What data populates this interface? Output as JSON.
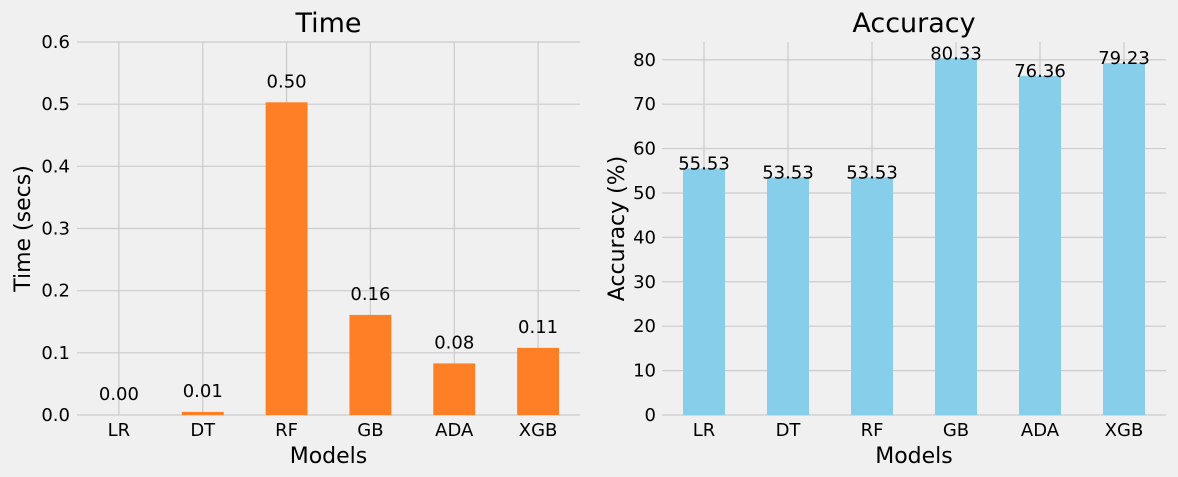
{
  "chart_data": [
    {
      "type": "bar",
      "title": "Time",
      "xlabel": "Models",
      "ylabel": "Time (secs)",
      "categories": [
        "LR",
        "DT",
        "RF",
        "GB",
        "ADA",
        "XGB"
      ],
      "values": [
        0.0,
        0.005,
        0.503,
        0.161,
        0.083,
        0.108
      ],
      "value_labels": [
        "0.00",
        "0.01",
        "0.50",
        "0.16",
        "0.08",
        "0.11"
      ],
      "ylim": [
        0,
        0.6
      ],
      "yticks": [
        "0.0",
        "0.1",
        "0.2",
        "0.3",
        "0.4",
        "0.5",
        "0.6"
      ],
      "ytick_values": [
        0,
        0.1,
        0.2,
        0.3,
        0.4,
        0.5,
        0.6
      ],
      "color": "#ff7f27",
      "grid": true,
      "label_style": "offset-above"
    },
    {
      "type": "bar",
      "title": "Accuracy",
      "xlabel": "Models",
      "ylabel": "Accuracy (%)",
      "categories": [
        "LR",
        "DT",
        "RF",
        "GB",
        "ADA",
        "XGB"
      ],
      "values": [
        55.53,
        53.53,
        53.53,
        80.33,
        76.36,
        79.23
      ],
      "value_labels": [
        "55.53",
        "53.53",
        "53.53",
        "80.33",
        "76.36",
        "79.23"
      ],
      "ylim": [
        0,
        84
      ],
      "yticks": [
        "0",
        "10",
        "20",
        "30",
        "40",
        "50",
        "60",
        "70",
        "80"
      ],
      "ytick_values": [
        0,
        10,
        20,
        30,
        40,
        50,
        60,
        70,
        80
      ],
      "color": "#87ceeb",
      "grid": true,
      "label_style": "on-top"
    }
  ]
}
